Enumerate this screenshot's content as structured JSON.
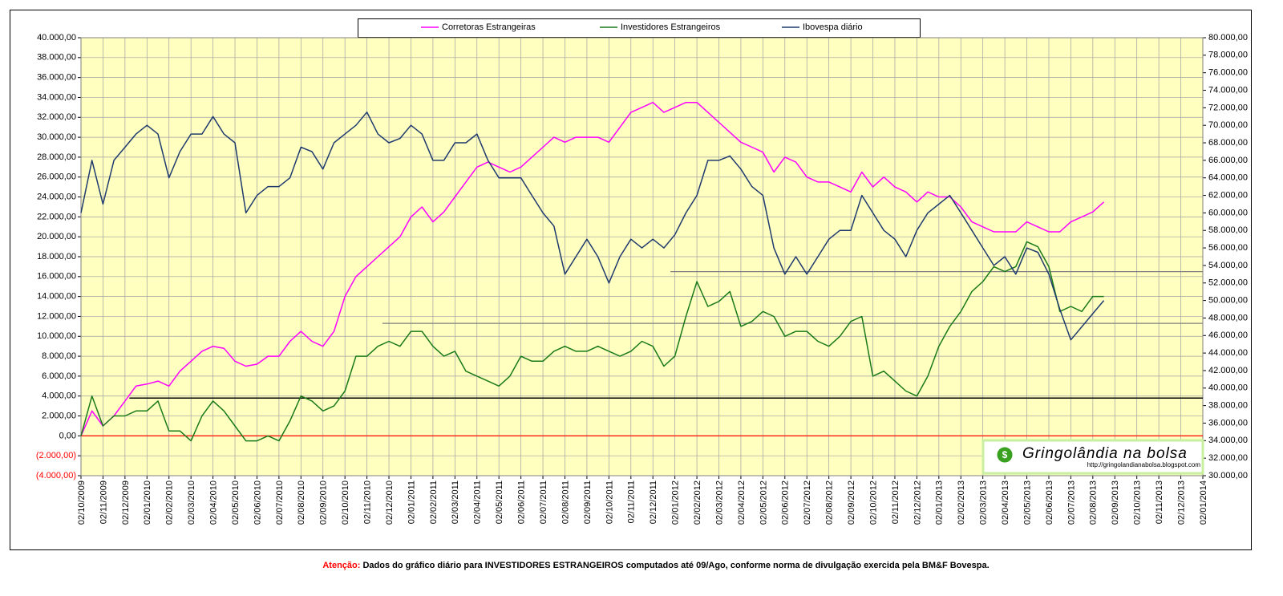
{
  "chart_data": {
    "type": "line",
    "x": [
      0,
      0.5,
      1,
      1.5,
      2,
      2.5,
      3,
      3.5,
      4,
      4.5,
      5,
      5.5,
      6,
      6.5,
      7,
      7.5,
      8,
      8.5,
      9,
      9.5,
      10,
      10.5,
      11,
      11.5,
      12,
      12.5,
      13,
      13.5,
      14,
      14.5,
      15,
      15.5,
      16,
      16.5,
      17,
      17.5,
      18,
      18.5,
      19,
      19.5,
      20,
      20.5,
      21,
      21.5,
      22,
      22.5,
      23,
      23.5,
      24,
      24.5,
      25,
      25.5,
      26,
      26.5,
      27,
      27.5,
      28,
      28.5,
      29,
      29.5,
      30,
      30.5,
      31,
      31.5,
      32,
      32.5,
      33,
      33.5,
      34,
      34.5,
      35,
      35.5,
      36,
      36.5,
      37,
      37.5,
      38,
      38.5,
      39,
      39.5,
      40,
      40.5,
      41,
      41.5,
      42,
      42.5,
      43,
      43.5,
      44,
      44.5,
      45,
      45.5,
      46,
      46.5
    ],
    "series": [
      {
        "name": "Corretoras Estrangeiras",
        "color": "#ff00ff",
        "values": [
          0,
          2500,
          1000,
          2000,
          3500,
          5000,
          5200,
          5500,
          5000,
          6500,
          7500,
          8500,
          9000,
          8800,
          7500,
          7000,
          7200,
          8000,
          8000,
          9500,
          10500,
          9500,
          9000,
          10500,
          14000,
          16000,
          17000,
          18000,
          19000,
          20000,
          22000,
          23000,
          21500,
          22500,
          24000,
          25500,
          27000,
          27500,
          27000,
          26500,
          27000,
          28000,
          29000,
          30000,
          29500,
          30000,
          30000,
          30000,
          29500,
          31000,
          32500,
          33000,
          33500,
          32500,
          33000,
          33500,
          33500,
          32500,
          31500,
          30500,
          29500,
          29000,
          28500,
          26500,
          28000,
          27500,
          26000,
          25500,
          25500,
          25000,
          24500,
          26500,
          25000,
          26000,
          25000,
          24500,
          23500,
          24500,
          24000,
          24000,
          23000,
          21500,
          21000,
          20500,
          20500,
          20500,
          21500,
          21000,
          20500,
          20500,
          21500,
          22000,
          22500,
          23500
        ]
      },
      {
        "name": "Investidores Estrangeiros",
        "color": "#1a7a1a",
        "values": [
          0,
          4000,
          1000,
          2000,
          2000,
          2500,
          2500,
          3500,
          500,
          500,
          -500,
          2000,
          3500,
          2500,
          1000,
          -500,
          -500,
          0,
          -500,
          1500,
          4000,
          3500,
          2500,
          3000,
          4500,
          8000,
          8000,
          9000,
          9500,
          9000,
          10500,
          10500,
          9000,
          8000,
          8500,
          6500,
          6000,
          5500,
          5000,
          6000,
          8000,
          7500,
          7500,
          8500,
          9000,
          8500,
          8500,
          9000,
          8500,
          8000,
          8500,
          9500,
          9000,
          7000,
          8000,
          12000,
          15500,
          13000,
          13500,
          14500,
          11000,
          11500,
          12500,
          12000,
          10000,
          10500,
          10500,
          9500,
          9000,
          10000,
          11500,
          12000,
          6000,
          6500,
          5500,
          4500,
          4000,
          6000,
          9000,
          11000,
          12500,
          14500,
          15500,
          17000,
          16500,
          17000,
          19500,
          19000,
          17000,
          12500,
          13000,
          12500,
          14000,
          14000
        ]
      },
      {
        "name": "Ibovespa diário",
        "color": "#1f3a6e",
        "axis": "y2",
        "values": [
          60000,
          66000,
          61000,
          66000,
          67500,
          69000,
          70000,
          69000,
          64000,
          67000,
          69000,
          69000,
          71000,
          69000,
          68000,
          60000,
          62000,
          63000,
          63000,
          64000,
          67500,
          67000,
          65000,
          68000,
          69000,
          70000,
          71500,
          69000,
          68000,
          68500,
          70000,
          69000,
          66000,
          66000,
          68000,
          68000,
          69000,
          66000,
          64000,
          64000,
          64000,
          62000,
          60000,
          58500,
          53000,
          55000,
          57000,
          55000,
          52000,
          55000,
          57000,
          56000,
          57000,
          56000,
          57500,
          60000,
          62000,
          66000,
          66000,
          66500,
          65000,
          63000,
          62000,
          56000,
          53000,
          55000,
          53000,
          55000,
          57000,
          58000,
          58000,
          62000,
          60000,
          58000,
          57000,
          55000,
          58000,
          60000,
          61000,
          62000,
          60000,
          58000,
          56000,
          54000,
          55000,
          53000,
          56000,
          55500,
          53000,
          49000,
          45500,
          47000,
          48500,
          50000
        ]
      }
    ],
    "reference_lines": [
      {
        "value": 0,
        "from": 0,
        "color": "#ff0000"
      },
      {
        "value": 3800,
        "from": 2.2,
        "color": "#000000"
      },
      {
        "value": 11300,
        "from": 13.7,
        "color": "#808080"
      },
      {
        "value": 16500,
        "from": 26.8,
        "color": "#808080"
      }
    ],
    "xlim": [
      0,
      51
    ],
    "xticks": [
      {
        "value": 0,
        "label": "02/10/2009"
      },
      {
        "value": 1,
        "label": "02/11/2009"
      },
      {
        "value": 2,
        "label": "02/12/2009"
      },
      {
        "value": 3,
        "label": "02/01/2010"
      },
      {
        "value": 4,
        "label": "02/02/2010"
      },
      {
        "value": 5,
        "label": "02/03/2010"
      },
      {
        "value": 6,
        "label": "02/04/2010"
      },
      {
        "value": 7,
        "label": "02/05/2010"
      },
      {
        "value": 8,
        "label": "02/06/2010"
      },
      {
        "value": 9,
        "label": "02/07/2010"
      },
      {
        "value": 10,
        "label": "02/08/2010"
      },
      {
        "value": 11,
        "label": "02/09/2010"
      },
      {
        "value": 12,
        "label": "02/10/2010"
      },
      {
        "value": 13,
        "label": "02/11/2010"
      },
      {
        "value": 14,
        "label": "02/12/2010"
      },
      {
        "value": 15,
        "label": "02/01/2011"
      },
      {
        "value": 16,
        "label": "02/02/2011"
      },
      {
        "value": 17,
        "label": "02/03/2011"
      },
      {
        "value": 18,
        "label": "02/04/2011"
      },
      {
        "value": 19,
        "label": "02/05/2011"
      },
      {
        "value": 20,
        "label": "02/06/2011"
      },
      {
        "value": 21,
        "label": "02/07/2011"
      },
      {
        "value": 22,
        "label": "02/08/2011"
      },
      {
        "value": 23,
        "label": "02/09/2011"
      },
      {
        "value": 24,
        "label": "02/10/2011"
      },
      {
        "value": 25,
        "label": "02/11/2011"
      },
      {
        "value": 26,
        "label": "02/12/2011"
      },
      {
        "value": 27,
        "label": "02/01/2012"
      },
      {
        "value": 28,
        "label": "02/02/2012"
      },
      {
        "value": 29,
        "label": "02/03/2012"
      },
      {
        "value": 30,
        "label": "02/04/2012"
      },
      {
        "value": 31,
        "label": "02/05/2012"
      },
      {
        "value": 32,
        "label": "02/06/2012"
      },
      {
        "value": 33,
        "label": "02/07/2012"
      },
      {
        "value": 34,
        "label": "02/08/2012"
      },
      {
        "value": 35,
        "label": "02/09/2012"
      },
      {
        "value": 36,
        "label": "02/10/2012"
      },
      {
        "value": 37,
        "label": "02/11/2012"
      },
      {
        "value": 38,
        "label": "02/12/2012"
      },
      {
        "value": 39,
        "label": "02/01/2013"
      },
      {
        "value": 40,
        "label": "02/02/2013"
      },
      {
        "value": 41,
        "label": "02/03/2013"
      },
      {
        "value": 42,
        "label": "02/04/2013"
      },
      {
        "value": 43,
        "label": "02/05/2013"
      },
      {
        "value": 44,
        "label": "02/06/2013"
      },
      {
        "value": 45,
        "label": "02/07/2013"
      },
      {
        "value": 46,
        "label": "02/08/2013"
      },
      {
        "value": 47,
        "label": "02/09/2013"
      },
      {
        "value": 48,
        "label": "02/10/2013"
      },
      {
        "value": 49,
        "label": "02/11/2013"
      },
      {
        "value": 50,
        "label": "02/12/2013"
      },
      {
        "value": 51,
        "label": "02/01/2014"
      }
    ],
    "ylim": [
      -4000,
      40000
    ],
    "yticks": [
      {
        "value": -4000,
        "label": "(4.000,00)"
      },
      {
        "value": -2000,
        "label": "(2.000,00)"
      },
      {
        "value": 0,
        "label": "0,00"
      },
      {
        "value": 2000,
        "label": "2.000,00"
      },
      {
        "value": 4000,
        "label": "4.000,00"
      },
      {
        "value": 6000,
        "label": "6.000,00"
      },
      {
        "value": 8000,
        "label": "8.000,00"
      },
      {
        "value": 10000,
        "label": "10.000,00"
      },
      {
        "value": 12000,
        "label": "12.000,00"
      },
      {
        "value": 14000,
        "label": "14.000,00"
      },
      {
        "value": 16000,
        "label": "16.000,00"
      },
      {
        "value": 18000,
        "label": "18.000,00"
      },
      {
        "value": 20000,
        "label": "20.000,00"
      },
      {
        "value": 22000,
        "label": "22.000,00"
      },
      {
        "value": 24000,
        "label": "24.000,00"
      },
      {
        "value": 26000,
        "label": "26.000,00"
      },
      {
        "value": 28000,
        "label": "28.000,00"
      },
      {
        "value": 30000,
        "label": "30.000,00"
      },
      {
        "value": 32000,
        "label": "32.000,00"
      },
      {
        "value": 34000,
        "label": "34.000,00"
      },
      {
        "value": 36000,
        "label": "36.000,00"
      },
      {
        "value": 38000,
        "label": "38.000,00"
      },
      {
        "value": 40000,
        "label": "40.000,00"
      }
    ],
    "y2lim": [
      30000,
      80000
    ],
    "y2ticks": [
      {
        "value": 30000,
        "label": "30.000,00"
      },
      {
        "value": 32000,
        "label": "32.000,00"
      },
      {
        "value": 34000,
        "label": "34.000,00"
      },
      {
        "value": 36000,
        "label": "36.000,00"
      },
      {
        "value": 38000,
        "label": "38.000,00"
      },
      {
        "value": 40000,
        "label": "40.000,00"
      },
      {
        "value": 42000,
        "label": "42.000,00"
      },
      {
        "value": 44000,
        "label": "44.000,00"
      },
      {
        "value": 46000,
        "label": "46.000,00"
      },
      {
        "value": 48000,
        "label": "48.000,00"
      },
      {
        "value": 50000,
        "label": "50.000,00"
      },
      {
        "value": 52000,
        "label": "52.000,00"
      },
      {
        "value": 54000,
        "label": "54.000,00"
      },
      {
        "value": 56000,
        "label": "56.000,00"
      },
      {
        "value": 58000,
        "label": "58.000,00"
      },
      {
        "value": 60000,
        "label": "60.000,00"
      },
      {
        "value": 62000,
        "label": "62.000,00"
      },
      {
        "value": 64000,
        "label": "64.000,00"
      },
      {
        "value": 66000,
        "label": "66.000,00"
      },
      {
        "value": 68000,
        "label": "68.000,00"
      },
      {
        "value": 70000,
        "label": "70.000,00"
      },
      {
        "value": 72000,
        "label": "72.000,00"
      },
      {
        "value": 74000,
        "label": "74.000,00"
      },
      {
        "value": 76000,
        "label": "76.000,00"
      },
      {
        "value": 78000,
        "label": "78.000,00"
      },
      {
        "value": 80000,
        "label": "80.000,00"
      }
    ],
    "grid": true,
    "negative_tick_color": "#ff0000",
    "plot_background": "#ffffc0",
    "logo": {
      "title": "Gringolândia na bolsa",
      "url": "http://gringolandianabolsa.blogspot.com"
    },
    "footnote": {
      "label": "Atenção:",
      "text": "Dados do gráfico diário para INVESTIDORES ESTRANGEIROS computados até 09/Ago,  conforme norma de divulgação exercida pela BM&F Bovespa."
    }
  }
}
